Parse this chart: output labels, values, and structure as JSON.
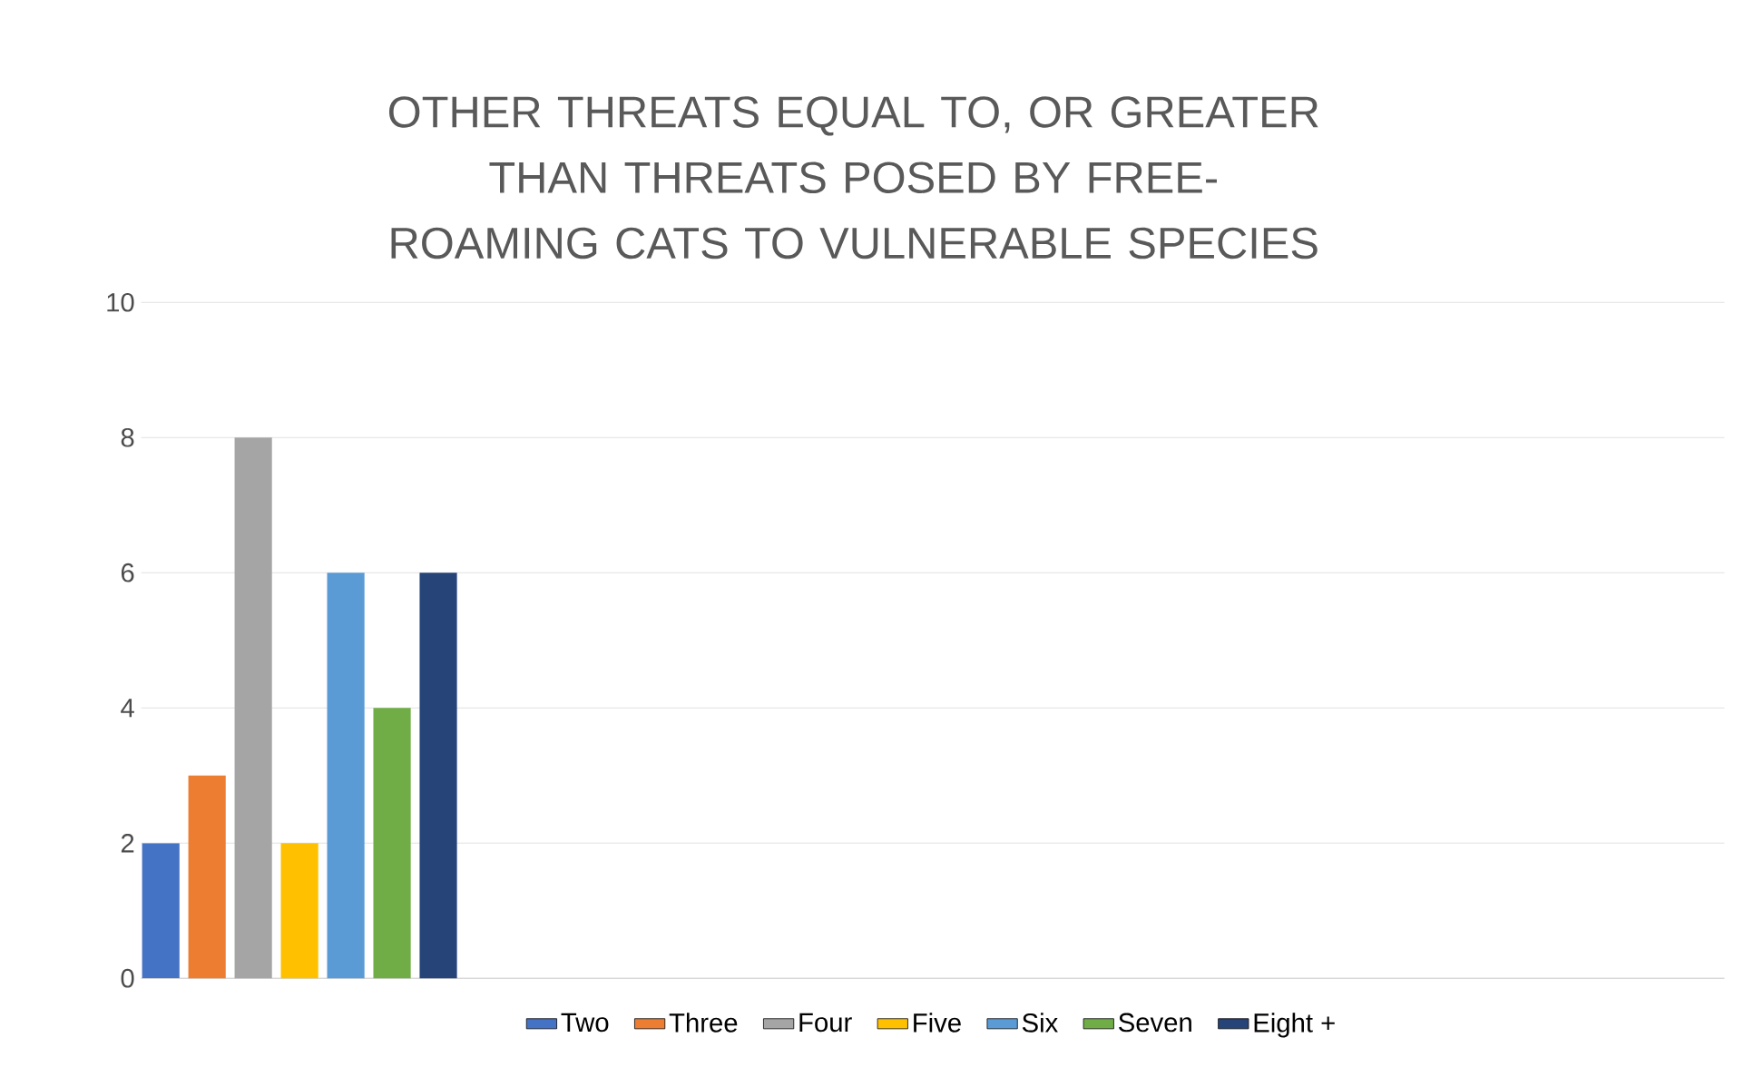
{
  "chart_data": {
    "type": "bar",
    "title": "OTHER THREATS EQUAL TO, OR GREATER THAN THREATS POSED BY FREE-ROAMING CATS TO VULNERABLE SPECIES",
    "categories": [
      null
    ],
    "series": [
      {
        "name": "Two",
        "color": "#4472c4",
        "values": [
          2
        ]
      },
      {
        "name": "Three",
        "color": "#ed7d31",
        "values": [
          3
        ]
      },
      {
        "name": "Four",
        "color": "#a5a5a5",
        "values": [
          8
        ]
      },
      {
        "name": "Five",
        "color": "#ffc000",
        "values": [
          2
        ]
      },
      {
        "name": "Six",
        "color": "#5b9bd5",
        "values": [
          6
        ]
      },
      {
        "name": "Seven",
        "color": "#70ad47",
        "values": [
          4
        ]
      },
      {
        "name": "Eight +",
        "color": "#264478",
        "values": [
          6
        ]
      }
    ],
    "ylim": [
      0,
      10
    ],
    "yticks": [
      0,
      2,
      4,
      6,
      8,
      10
    ],
    "grid": "y",
    "legend": "bottom"
  }
}
